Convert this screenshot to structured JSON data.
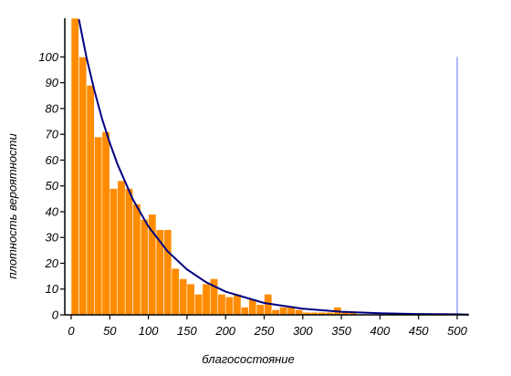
{
  "chart_data": {
    "type": "histogram",
    "xlabel": "благосостояние",
    "ylabel": "плотность вероятности",
    "bins": [
      0,
      10,
      20,
      30,
      40,
      50,
      60,
      70,
      80,
      90,
      100,
      110,
      120,
      130,
      140,
      150,
      160,
      170,
      180,
      190,
      200,
      210,
      220,
      230,
      240,
      250,
      260,
      270,
      280,
      290,
      300,
      310,
      320,
      330,
      340,
      350,
      360,
      370,
      380,
      390,
      400,
      410,
      420
    ],
    "values": [
      115,
      100,
      89,
      69,
      71,
      49,
      52,
      49,
      43,
      37,
      39,
      33,
      33,
      18,
      14,
      12,
      8,
      12,
      14,
      8,
      7,
      8,
      3,
      6,
      4,
      8,
      2,
      3,
      3,
      2,
      1,
      1,
      1,
      1,
      3,
      1,
      1,
      0,
      0,
      0,
      0,
      1
    ],
    "color": "#ff8c00",
    "curve": {
      "color": "#000080",
      "x": [
        10,
        20,
        30,
        40,
        50,
        60,
        80,
        100,
        125,
        150,
        175,
        200,
        250,
        300,
        350,
        400,
        450,
        500,
        515
      ],
      "y": [
        114.6,
        99.6,
        87.1,
        76.0,
        66.7,
        58.4,
        44.7,
        34.3,
        24.6,
        17.6,
        12.6,
        9.0,
        4.6,
        2.4,
        1.2,
        0.6,
        0.3,
        0.2,
        0.1
      ]
    },
    "vline": {
      "x": 500,
      "ymax": 100,
      "color": "#b0b8ff"
    },
    "xlim": [
      0,
      515
    ],
    "ylim": [
      0,
      115
    ],
    "xticks": [
      0,
      50,
      100,
      150,
      200,
      250,
      300,
      350,
      400,
      450,
      500
    ],
    "yticks": [
      0,
      10,
      20,
      30,
      40,
      50,
      60,
      70,
      80,
      90,
      100
    ],
    "grid": false
  }
}
